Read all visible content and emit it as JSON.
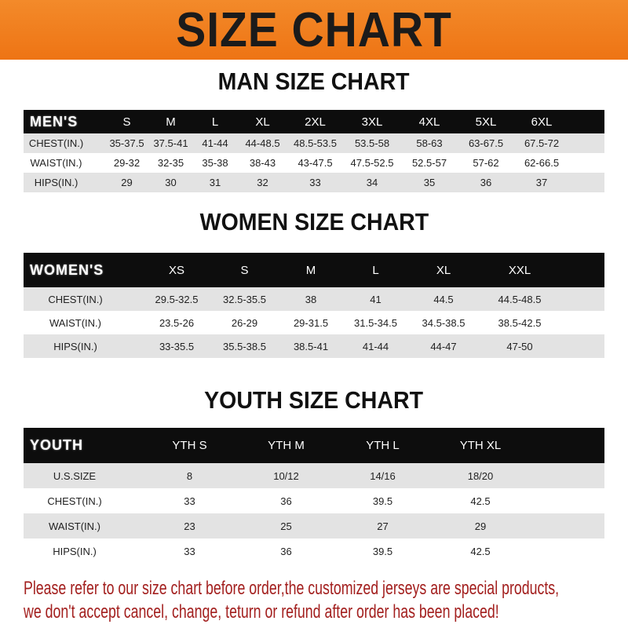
{
  "banner": {
    "title": "SIZE CHART",
    "color": "#ef7a1c"
  },
  "men": {
    "title": "MAN SIZE CHART",
    "header": [
      "MEN'S",
      "S",
      "M",
      "L",
      "XL",
      "2XL",
      "3XL",
      "4XL",
      "5XL",
      "6XL"
    ],
    "rows": [
      [
        "CHEST(IN.)",
        "35-37.5",
        "37.5-41",
        "41-44",
        "44-48.5",
        "48.5-53.5",
        "53.5-58",
        "58-63",
        "63-67.5",
        "67.5-72"
      ],
      [
        "WAIST(IN.)",
        "29-32",
        "32-35",
        "35-38",
        "38-43",
        "43-47.5",
        "47.5-52.5",
        "52.5-57",
        "57-62",
        "62-66.5"
      ],
      [
        "HIPS(IN.)",
        "29",
        "30",
        "31",
        "32",
        "33",
        "34",
        "35",
        "36",
        "37"
      ]
    ]
  },
  "women": {
    "title": "WOMEN SIZE CHART",
    "header": [
      "WOMEN'S",
      "XS",
      "S",
      "M",
      "L",
      "XL",
      "XXL"
    ],
    "rows": [
      [
        "CHEST(IN.)",
        "29.5-32.5",
        "32.5-35.5",
        "38",
        "41",
        "44.5",
        "44.5-48.5"
      ],
      [
        "WAIST(IN.)",
        "23.5-26",
        "26-29",
        "29-31.5",
        "31.5-34.5",
        "34.5-38.5",
        "38.5-42.5"
      ],
      [
        "HIPS(IN.)",
        "33-35.5",
        "35.5-38.5",
        "38.5-41",
        "41-44",
        "44-47",
        "47-50"
      ]
    ]
  },
  "youth": {
    "title": "YOUTH SIZE CHART",
    "header": [
      "YOUTH",
      "YTH S",
      "YTH M",
      "YTH L",
      "YTH XL"
    ],
    "rows": [
      [
        "U.S.SIZE",
        "8",
        "10/12",
        "14/16",
        "18/20"
      ],
      [
        "CHEST(IN.)",
        "33",
        "36",
        "39.5",
        "42.5"
      ],
      [
        "WAIST(IN.)",
        "23",
        "25",
        "27",
        "29"
      ],
      [
        "HIPS(IN.)",
        "33",
        "36",
        "39.5",
        "42.5"
      ]
    ]
  },
  "note": {
    "line1": "Please refer to our size chart before order,the customized jerseys are special products,",
    "line2": "we don't accept cancel, change, teturn or refund after order has been placed!",
    "color": "#a3201f"
  }
}
